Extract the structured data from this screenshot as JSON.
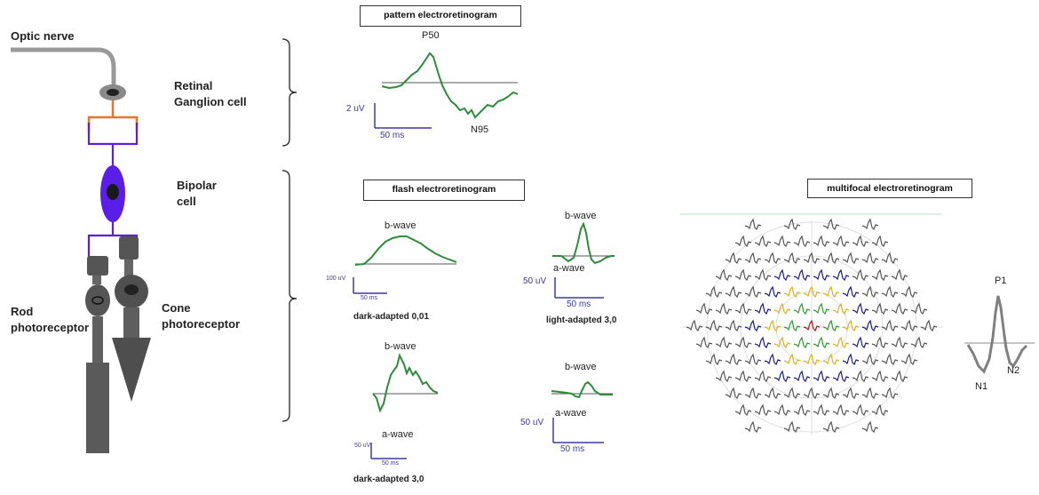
{
  "retina": {
    "optic_nerve": "Optic nerve",
    "ganglion_line1": "Retinal",
    "ganglion_line2": "Ganglion cell",
    "bipolar_line1": "Bipolar",
    "bipolar_line2": "cell",
    "rod_line1": "Rod",
    "rod_line2": "photoreceptor",
    "cone_line1": "Cone",
    "cone_line2": "photoreceptor",
    "colors": {
      "ganglion_dendrite": "#e8732a",
      "bipolar": "#5a1ee8",
      "cell_gray": "#555555"
    }
  },
  "pattern": {
    "title": "pattern electroretinogram",
    "p50": "P50",
    "n95": "N95",
    "scale_v": "2 uV",
    "scale_t": "50 ms"
  },
  "flash": {
    "title": "flash electroretinogram",
    "dark001": {
      "bwave": "b-wave",
      "scale_v": "100 uV",
      "scale_t": "50 ms",
      "caption": "dark-adapted 0,01"
    },
    "light30": {
      "bwave": "b-wave",
      "awave": "a-wave",
      "scale_v": "50 uV",
      "scale_t": "50 ms",
      "caption": "light-adapted 3,0"
    },
    "dark30": {
      "bwave": "b-wave",
      "awave": "a-wave",
      "scale_v": "50 uV",
      "scale_t": "50 ms",
      "caption": "dark-adapted 3,0"
    },
    "flicker": {
      "bwave": "b-wave",
      "awave": "a-wave",
      "scale_v": "50 uV",
      "scale_t": "50 ms"
    }
  },
  "multifocal": {
    "title": "multifocal electroretinogram",
    "p1": "P1",
    "n1": "N1",
    "n2": "N2",
    "ring_colors": [
      "#c0101a",
      "#2e9a2e",
      "#e0b020",
      "#1a1a8a",
      "#555555"
    ]
  },
  "colors": {
    "trace": "#2e8b3a",
    "scale_bar": "#3a3aa0"
  }
}
